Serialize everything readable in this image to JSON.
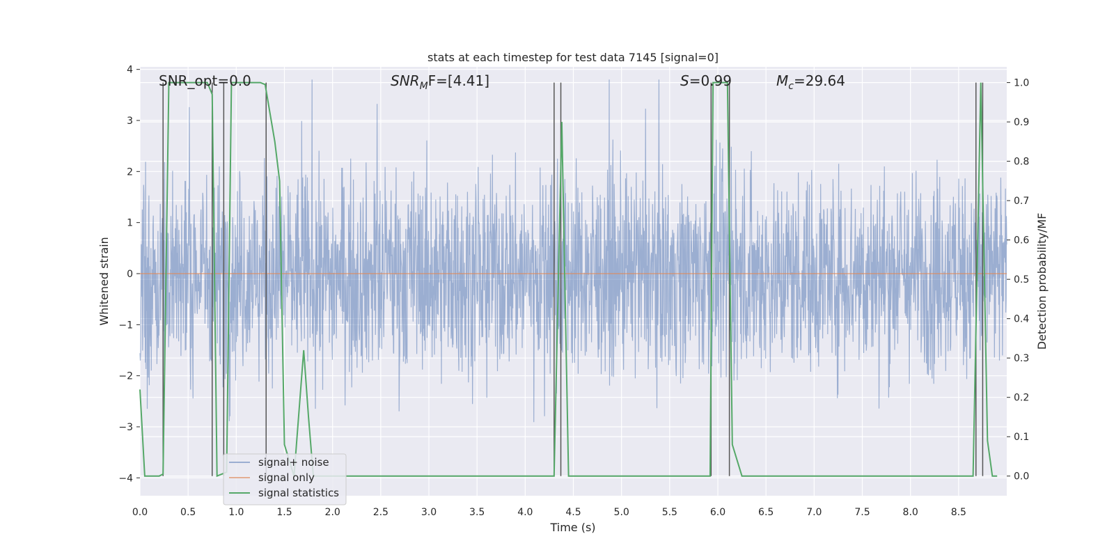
{
  "chart_data": {
    "type": "line",
    "title": "stats at each timestep for test data 7145 [signal=0]",
    "xlabel": "Time (s)",
    "ylabel": "Whitened strain",
    "ylabel_right": "Detection probability/MF",
    "xlim": [
      0.0,
      9.0
    ],
    "ylim": [
      -4.35,
      4.05
    ],
    "ylim_right": [
      -0.05,
      1.04
    ],
    "x_ticks": [
      "0.0",
      "0.5",
      "1.0",
      "1.5",
      "2.0",
      "2.5",
      "3.0",
      "3.5",
      "4.0",
      "4.5",
      "5.0",
      "5.5",
      "6.0",
      "6.5",
      "7.0",
      "7.5",
      "8.0",
      "8.5"
    ],
    "y_ticks": [
      "−4",
      "−3",
      "−2",
      "−1",
      "0",
      "1",
      "2",
      "3",
      "4"
    ],
    "y_ticks_right": [
      "0.0",
      "0.1",
      "0.2",
      "0.3",
      "0.4",
      "0.5",
      "0.6",
      "0.7",
      "0.8",
      "0.9",
      "1.0"
    ],
    "annotations": {
      "snr_opt": "SNR_opt=0.0",
      "snr_mf_base": "SNR",
      "snr_mf_sub": "M",
      "snr_mf_rest": "F=[4.41]",
      "s_sym": "S",
      "s_val": "=0.99",
      "mc_sym": "M",
      "mc_sub": "c",
      "mc_val": "=29.64"
    },
    "series": [
      {
        "name": "signal+ noise",
        "color": "#4c72b0",
        "opacity": 0.5,
        "description": "whitened noise, roughly within ±2 with spikes to ±4"
      },
      {
        "name": "signal only",
        "color": "#dd8452",
        "values_constant": 0.0
      },
      {
        "name": "signal statistics",
        "color": "#55a868",
        "x": [
          0.0,
          0.05,
          0.2,
          0.24,
          0.3,
          0.7,
          0.75,
          0.8,
          0.85,
          0.9,
          0.95,
          1.25,
          1.3,
          1.4,
          1.45,
          1.5,
          1.6,
          1.7,
          1.75,
          1.8,
          1.9,
          4.3,
          4.38,
          4.45,
          5.92,
          5.95,
          6.1,
          6.15,
          6.25,
          8.65,
          8.73,
          8.8,
          8.85,
          8.9
        ],
        "values": [
          0.22,
          0.0,
          0.0,
          0.005,
          1.0,
          1.0,
          0.97,
          0.0,
          0.005,
          0.01,
          1.0,
          1.0,
          0.995,
          0.85,
          0.75,
          0.08,
          0.0,
          0.32,
          0.15,
          0.0,
          0.0,
          0.0,
          0.9,
          0.0,
          0.0,
          1.0,
          1.0,
          0.08,
          0.0,
          0.0,
          1.0,
          0.09,
          0.0,
          0.0
        ]
      },
      {
        "name": "",
        "color": "#555555",
        "markers_x": [
          0.24,
          0.75,
          0.87,
          1.31,
          4.3,
          4.37,
          5.93,
          6.12,
          8.68,
          8.75
        ]
      }
    ],
    "legend": {
      "placement": "lower-left",
      "entries": [
        "signal+ noise",
        "signal only",
        "signal statistics"
      ]
    },
    "grid": true,
    "background": "#eaeaf2"
  }
}
